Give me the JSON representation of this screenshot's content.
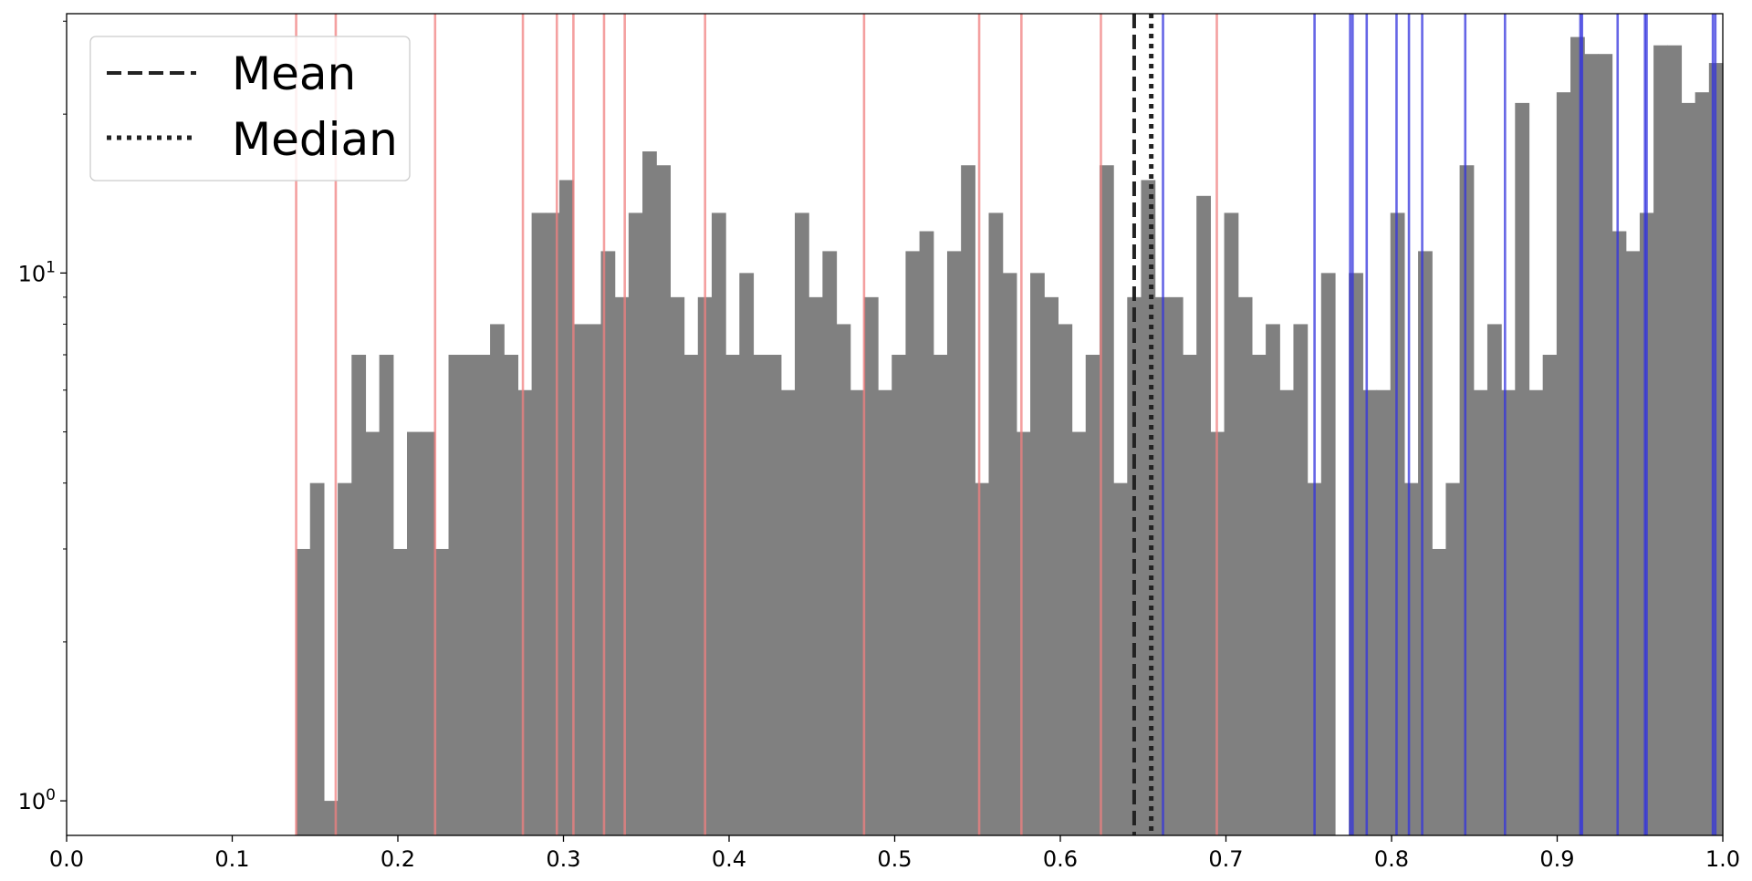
{
  "chart_data": {
    "type": "bar",
    "title": "",
    "xlabel": "",
    "ylabel": "",
    "xlim": [
      0.0,
      1.0
    ],
    "yscale": "log",
    "ylim": [
      0.86,
      31
    ],
    "x_ticks": [
      "0.0",
      "0.1",
      "0.2",
      "0.3",
      "0.4",
      "0.5",
      "0.6",
      "0.7",
      "0.8",
      "0.9",
      "1.0"
    ],
    "y_ticks": [
      {
        "value": 1,
        "base": "10",
        "exp": "0"
      },
      {
        "value": 10,
        "base": "10",
        "exp": "1"
      }
    ],
    "bin_range": [
      0.1386,
      1.0
    ],
    "counts": [
      3,
      4,
      1,
      4,
      7,
      5,
      7,
      3,
      5,
      5,
      3,
      7,
      7,
      7,
      8,
      7,
      6,
      13,
      13,
      15,
      8,
      8,
      11,
      9,
      13,
      17,
      16,
      9,
      7,
      9,
      13,
      7,
      10,
      7,
      7,
      6,
      13,
      9,
      11,
      8,
      6,
      9,
      6,
      7,
      11,
      12,
      7,
      11,
      16,
      4,
      13,
      10,
      5,
      10,
      9,
      8,
      5,
      7,
      16,
      4,
      9,
      15,
      9,
      9,
      7,
      14,
      5,
      13,
      9,
      7,
      8,
      6,
      8,
      4,
      10,
      0,
      10,
      6,
      6,
      13,
      4,
      11,
      3,
      4,
      16,
      6,
      8,
      6,
      21,
      6,
      7,
      22,
      28,
      26,
      26,
      12,
      11,
      13,
      27,
      27,
      21,
      22,
      25
    ],
    "bar_color": "#808080",
    "mean": 0.6446,
    "median": 0.6549,
    "legend": {
      "position": "top-left",
      "entries": [
        {
          "label": "Mean",
          "style": "dashed"
        },
        {
          "label": "Median",
          "style": "dotted"
        }
      ]
    },
    "red_lines": {
      "color": "#f08080",
      "x": [
        0.1386,
        0.1625,
        0.2225,
        0.2755,
        0.296,
        0.306,
        0.3245,
        0.337,
        0.3855,
        0.4815,
        0.551,
        0.5765,
        0.6245,
        0.6945
      ]
    },
    "blue_lines": {
      "color": "#3333dd",
      "x": [
        0.662,
        0.7535,
        0.775,
        0.7765,
        0.785,
        0.803,
        0.8105,
        0.8185,
        0.8445,
        0.8685,
        0.914,
        0.915,
        0.9365,
        0.953,
        0.954,
        0.994,
        0.9955
      ]
    }
  }
}
